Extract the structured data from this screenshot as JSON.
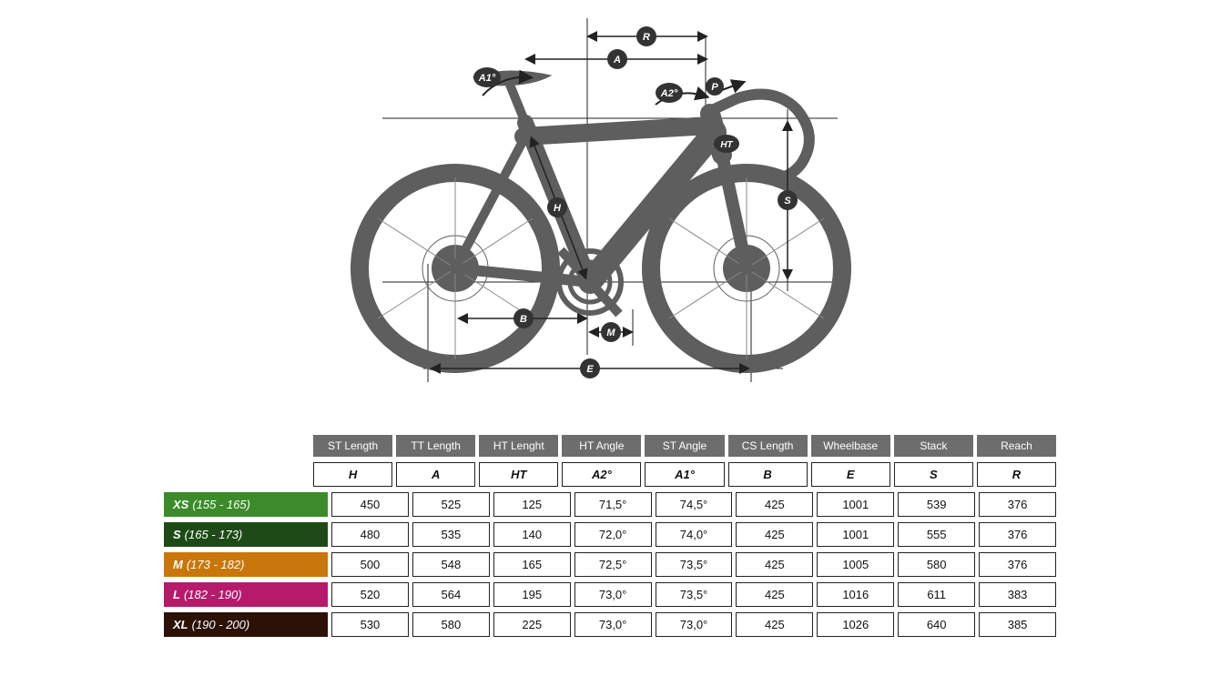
{
  "diagram": {
    "labels": {
      "R": "R",
      "A": "A",
      "A1": "A1°",
      "A2": "A2°",
      "P": "P",
      "HT": "HT",
      "S": "S",
      "H": "H",
      "B": "B",
      "M": "M",
      "E": "E"
    },
    "bike_color": "#5e5e5e",
    "line_color": "#222222",
    "badge_bg": "#333333",
    "badge_fg": "#ffffff"
  },
  "table": {
    "columns": [
      {
        "title": "ST Length",
        "symbol": "H"
      },
      {
        "title": "TT Length",
        "symbol": "A"
      },
      {
        "title": "HT Lenght",
        "symbol": "HT"
      },
      {
        "title": "HT Angle",
        "symbol": "A2°"
      },
      {
        "title": "ST Angle",
        "symbol": "A1°"
      },
      {
        "title": "CS Length",
        "symbol": "B"
      },
      {
        "title": "Wheelbase",
        "symbol": "E"
      },
      {
        "title": "Stack",
        "symbol": "S"
      },
      {
        "title": "Reach",
        "symbol": "R"
      }
    ],
    "sizes": [
      {
        "label": "XS",
        "range": "(155 - 165)",
        "color": "#3b8b2a",
        "values": [
          "450",
          "525",
          "125",
          "71,5°",
          "74,5°",
          "425",
          "1001",
          "539",
          "376"
        ]
      },
      {
        "label": "S",
        "range": "(165 - 173)",
        "color": "#1e4a17",
        "values": [
          "480",
          "535",
          "140",
          "72,0°",
          "74,0°",
          "425",
          "1001",
          "555",
          "376"
        ]
      },
      {
        "label": "M",
        "range": "(173 - 182)",
        "color": "#c9760a",
        "values": [
          "500",
          "548",
          "165",
          "72,5°",
          "73,5°",
          "425",
          "1005",
          "580",
          "376"
        ]
      },
      {
        "label": "L",
        "range": "(182 - 190)",
        "color": "#b61a6b",
        "values": [
          "520",
          "564",
          "195",
          "73,0°",
          "73,5°",
          "425",
          "1016",
          "611",
          "383"
        ]
      },
      {
        "label": "XL",
        "range": "(190 - 200)",
        "color": "#2b1106",
        "values": [
          "530",
          "580",
          "225",
          "73,0°",
          "73,0°",
          "425",
          "1026",
          "640",
          "385"
        ]
      }
    ]
  }
}
